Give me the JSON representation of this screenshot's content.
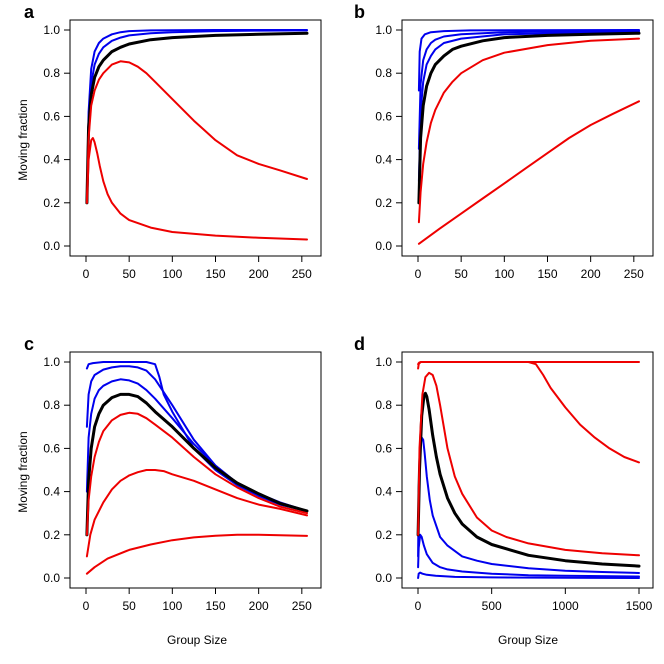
{
  "figure": {
    "shared_xlabel": "Group Size",
    "shared_ylabel": "Moving fraction"
  },
  "chart_data": [
    {
      "panel": "a",
      "type": "line",
      "xlabel": "",
      "ylabel": "Moving fraction",
      "xlim": [
        0,
        256
      ],
      "ylim": [
        0,
        1
      ],
      "xticks": [
        0,
        50,
        100,
        150,
        200,
        250
      ],
      "yticks": [
        0.0,
        0.2,
        0.4,
        0.6,
        0.8,
        1.0
      ],
      "xtick_labels": [
        "0",
        "50",
        "100",
        "150",
        "200",
        "250"
      ],
      "ytick_labels": [
        "0.0",
        "0.2",
        "0.4",
        "0.6",
        "0.8",
        "1.0"
      ],
      "grid": false,
      "series": [
        {
          "color": "#0000ee",
          "width": 2,
          "x": [
            1,
            3,
            6,
            10,
            15,
            20,
            30,
            40,
            50,
            75,
            100,
            150,
            200,
            256
          ],
          "y": [
            0.2,
            0.62,
            0.82,
            0.9,
            0.94,
            0.96,
            0.98,
            0.99,
            0.995,
            0.998,
            0.999,
            1.0,
            1.0,
            1.0
          ]
        },
        {
          "color": "#0000ee",
          "width": 2,
          "x": [
            1,
            3,
            6,
            10,
            15,
            20,
            30,
            40,
            50,
            75,
            100,
            150,
            200,
            256
          ],
          "y": [
            0.2,
            0.58,
            0.75,
            0.84,
            0.89,
            0.92,
            0.95,
            0.965,
            0.975,
            0.985,
            0.99,
            0.995,
            0.997,
            0.998
          ]
        },
        {
          "color": "#000000",
          "width": 3,
          "x": [
            1,
            3,
            6,
            10,
            15,
            20,
            30,
            40,
            50,
            75,
            100,
            150,
            200,
            256
          ],
          "y": [
            0.2,
            0.55,
            0.7,
            0.78,
            0.83,
            0.86,
            0.9,
            0.92,
            0.935,
            0.955,
            0.965,
            0.975,
            0.98,
            0.985
          ]
        },
        {
          "color": "#ee0000",
          "width": 2,
          "x": [
            1,
            3,
            6,
            10,
            15,
            20,
            30,
            40,
            50,
            60,
            70,
            80,
            100,
            125,
            150,
            175,
            200,
            225,
            256
          ],
          "y": [
            0.2,
            0.5,
            0.65,
            0.72,
            0.77,
            0.8,
            0.84,
            0.855,
            0.85,
            0.83,
            0.8,
            0.76,
            0.68,
            0.58,
            0.49,
            0.42,
            0.38,
            0.35,
            0.31
          ]
        },
        {
          "color": "#ee0000",
          "width": 2,
          "x": [
            1,
            3,
            6,
            8,
            10,
            13,
            16,
            20,
            25,
            30,
            40,
            50,
            75,
            100,
            150,
            200,
            256
          ],
          "y": [
            0.2,
            0.4,
            0.49,
            0.5,
            0.48,
            0.43,
            0.37,
            0.3,
            0.24,
            0.2,
            0.15,
            0.12,
            0.085,
            0.065,
            0.048,
            0.038,
            0.03
          ]
        }
      ]
    },
    {
      "panel": "b",
      "type": "line",
      "xlabel": "",
      "ylabel": "",
      "xlim": [
        0,
        256
      ],
      "ylim": [
        0,
        1
      ],
      "xticks": [
        0,
        50,
        100,
        150,
        200,
        250
      ],
      "yticks": [
        0.0,
        0.2,
        0.4,
        0.6,
        0.8,
        1.0
      ],
      "xtick_labels": [
        "0",
        "50",
        "100",
        "150",
        "200",
        "250"
      ],
      "ytick_labels": [
        "0.0",
        "0.2",
        "0.4",
        "0.6",
        "0.8",
        "1.0"
      ],
      "grid": false,
      "series": [
        {
          "color": "#0000ee",
          "width": 2,
          "x": [
            1,
            2,
            4,
            8,
            15,
            30,
            60,
            256
          ],
          "y": [
            0.72,
            0.9,
            0.96,
            0.98,
            0.99,
            0.995,
            0.998,
            1.0
          ]
        },
        {
          "color": "#0000ee",
          "width": 2,
          "x": [
            1,
            3,
            6,
            10,
            15,
            20,
            30,
            50,
            100,
            256
          ],
          "y": [
            0.45,
            0.75,
            0.86,
            0.91,
            0.94,
            0.955,
            0.97,
            0.98,
            0.99,
            0.997
          ]
        },
        {
          "color": "#0000ee",
          "width": 2,
          "x": [
            1,
            3,
            6,
            10,
            15,
            20,
            30,
            50,
            100,
            256
          ],
          "y": [
            0.3,
            0.62,
            0.76,
            0.84,
            0.88,
            0.91,
            0.94,
            0.96,
            0.98,
            0.993
          ]
        },
        {
          "color": "#000000",
          "width": 3,
          "x": [
            1,
            3,
            6,
            10,
            15,
            20,
            30,
            40,
            50,
            75,
            100,
            150,
            200,
            256
          ],
          "y": [
            0.2,
            0.5,
            0.65,
            0.74,
            0.8,
            0.84,
            0.88,
            0.91,
            0.925,
            0.95,
            0.965,
            0.975,
            0.98,
            0.985
          ]
        },
        {
          "color": "#ee0000",
          "width": 2,
          "x": [
            1,
            3,
            6,
            10,
            15,
            20,
            30,
            40,
            50,
            75,
            100,
            150,
            200,
            256
          ],
          "y": [
            0.11,
            0.25,
            0.38,
            0.48,
            0.57,
            0.63,
            0.71,
            0.76,
            0.8,
            0.86,
            0.895,
            0.93,
            0.95,
            0.96
          ]
        },
        {
          "color": "#ee0000",
          "width": 2,
          "x": [
            1,
            25,
            50,
            75,
            100,
            125,
            150,
            175,
            200,
            225,
            256
          ],
          "y": [
            0.01,
            0.08,
            0.15,
            0.22,
            0.29,
            0.36,
            0.43,
            0.5,
            0.56,
            0.61,
            0.67
          ]
        }
      ]
    },
    {
      "panel": "c",
      "type": "line",
      "xlabel": "Group Size",
      "ylabel": "Moving fraction",
      "xlim": [
        0,
        256
      ],
      "ylim": [
        0,
        1
      ],
      "xticks": [
        0,
        50,
        100,
        150,
        200,
        250
      ],
      "yticks": [
        0.0,
        0.2,
        0.4,
        0.6,
        0.8,
        1.0
      ],
      "xtick_labels": [
        "0",
        "50",
        "100",
        "150",
        "200",
        "250"
      ],
      "ytick_labels": [
        "0.0",
        "0.2",
        "0.4",
        "0.6",
        "0.8",
        "1.0"
      ],
      "grid": false,
      "series": [
        {
          "color": "#0000ee",
          "width": 2,
          "x": [
            1,
            3,
            8,
            20,
            50,
            70,
            80,
            85,
            90,
            100,
            125,
            150,
            175,
            200,
            225,
            256
          ],
          "y": [
            0.97,
            0.99,
            0.995,
            1.0,
            1.0,
            1.0,
            0.99,
            0.93,
            0.85,
            0.77,
            0.6,
            0.5,
            0.43,
            0.38,
            0.34,
            0.31
          ]
        },
        {
          "color": "#0000ee",
          "width": 2,
          "x": [
            1,
            3,
            6,
            10,
            20,
            30,
            40,
            50,
            60,
            70,
            80,
            90,
            100,
            125,
            150,
            175,
            200,
            225,
            256
          ],
          "y": [
            0.7,
            0.85,
            0.91,
            0.94,
            0.965,
            0.975,
            0.98,
            0.98,
            0.975,
            0.96,
            0.92,
            0.86,
            0.8,
            0.64,
            0.52,
            0.44,
            0.38,
            0.345,
            0.31
          ]
        },
        {
          "color": "#0000ee",
          "width": 2,
          "x": [
            1,
            3,
            6,
            10,
            15,
            20,
            30,
            40,
            50,
            60,
            70,
            80,
            100,
            125,
            150,
            175,
            200,
            225,
            256
          ],
          "y": [
            0.4,
            0.65,
            0.76,
            0.83,
            0.87,
            0.89,
            0.91,
            0.92,
            0.915,
            0.9,
            0.87,
            0.83,
            0.74,
            0.62,
            0.52,
            0.44,
            0.39,
            0.35,
            0.31
          ]
        },
        {
          "color": "#000000",
          "width": 3,
          "x": [
            1,
            3,
            6,
            10,
            15,
            20,
            30,
            40,
            50,
            60,
            70,
            80,
            100,
            125,
            150,
            175,
            200,
            225,
            256
          ],
          "y": [
            0.2,
            0.45,
            0.6,
            0.7,
            0.76,
            0.8,
            0.835,
            0.85,
            0.85,
            0.84,
            0.81,
            0.77,
            0.7,
            0.6,
            0.51,
            0.44,
            0.39,
            0.345,
            0.31
          ]
        },
        {
          "color": "#ee0000",
          "width": 2,
          "x": [
            1,
            3,
            6,
            10,
            15,
            20,
            30,
            40,
            50,
            60,
            70,
            80,
            100,
            125,
            150,
            175,
            200,
            225,
            256
          ],
          "y": [
            0.2,
            0.36,
            0.47,
            0.56,
            0.63,
            0.68,
            0.73,
            0.755,
            0.765,
            0.76,
            0.74,
            0.71,
            0.65,
            0.56,
            0.48,
            0.42,
            0.37,
            0.33,
            0.3
          ]
        },
        {
          "color": "#ee0000",
          "width": 2,
          "x": [
            1,
            5,
            10,
            20,
            30,
            40,
            50,
            60,
            70,
            80,
            90,
            100,
            125,
            150,
            175,
            200,
            225,
            256
          ],
          "y": [
            0.1,
            0.2,
            0.27,
            0.35,
            0.41,
            0.45,
            0.475,
            0.49,
            0.5,
            0.5,
            0.495,
            0.48,
            0.45,
            0.41,
            0.37,
            0.34,
            0.32,
            0.29
          ]
        },
        {
          "color": "#ee0000",
          "width": 2,
          "x": [
            1,
            10,
            25,
            50,
            75,
            100,
            125,
            150,
            175,
            200,
            225,
            256
          ],
          "y": [
            0.02,
            0.05,
            0.09,
            0.13,
            0.155,
            0.175,
            0.188,
            0.196,
            0.2,
            0.2,
            0.198,
            0.195
          ]
        }
      ]
    },
    {
      "panel": "d",
      "type": "line",
      "xlabel": "Group Size",
      "ylabel": "",
      "xlim": [
        0,
        1500
      ],
      "ylim": [
        0,
        1
      ],
      "xticks": [
        0,
        500,
        1000,
        1500
      ],
      "yticks": [
        0.0,
        0.2,
        0.4,
        0.6,
        0.8,
        1.0
      ],
      "xtick_labels": [
        "0",
        "500",
        "1000",
        "1500"
      ],
      "ytick_labels": [
        "0.0",
        "0.2",
        "0.4",
        "0.6",
        "0.8",
        "1.0"
      ],
      "grid": false,
      "series": [
        {
          "color": "#0000ee",
          "width": 2,
          "x": [
            1,
            5,
            15,
            30,
            60,
            120,
            250,
            500,
            1000,
            1500
          ],
          "y": [
            0.0,
            0.02,
            0.025,
            0.02,
            0.015,
            0.01,
            0.005,
            0.003,
            0.001,
            0.0
          ]
        },
        {
          "color": "#0000ee",
          "width": 2,
          "x": [
            1,
            5,
            15,
            25,
            40,
            60,
            100,
            150,
            200,
            300,
            500,
            750,
            1000,
            1500
          ],
          "y": [
            0.05,
            0.14,
            0.2,
            0.19,
            0.15,
            0.11,
            0.07,
            0.05,
            0.04,
            0.03,
            0.02,
            0.013,
            0.01,
            0.007
          ]
        },
        {
          "color": "#0000ee",
          "width": 2,
          "x": [
            1,
            5,
            15,
            25,
            35,
            45,
            60,
            80,
            100,
            150,
            200,
            300,
            400,
            500,
            750,
            1000,
            1250,
            1500
          ],
          "y": [
            0.1,
            0.4,
            0.6,
            0.65,
            0.64,
            0.58,
            0.47,
            0.36,
            0.29,
            0.19,
            0.15,
            0.1,
            0.08,
            0.065,
            0.045,
            0.034,
            0.028,
            0.023
          ]
        },
        {
          "color": "#000000",
          "width": 3,
          "x": [
            1,
            10,
            25,
            40,
            50,
            60,
            75,
            100,
            125,
            150,
            200,
            250,
            300,
            400,
            500,
            750,
            1000,
            1250,
            1500
          ],
          "y": [
            0.2,
            0.5,
            0.75,
            0.84,
            0.855,
            0.84,
            0.78,
            0.66,
            0.56,
            0.48,
            0.37,
            0.3,
            0.25,
            0.19,
            0.155,
            0.105,
            0.08,
            0.065,
            0.055
          ]
        },
        {
          "color": "#ee0000",
          "width": 2,
          "x": [
            1,
            10,
            30,
            50,
            75,
            100,
            125,
            150,
            175,
            200,
            250,
            300,
            400,
            500,
            600,
            750,
            1000,
            1250,
            1500
          ],
          "y": [
            0.2,
            0.6,
            0.85,
            0.93,
            0.95,
            0.94,
            0.89,
            0.8,
            0.7,
            0.6,
            0.47,
            0.39,
            0.28,
            0.22,
            0.19,
            0.16,
            0.13,
            0.115,
            0.105
          ]
        },
        {
          "color": "#ee0000",
          "width": 2,
          "x": [
            1,
            5,
            10,
            20,
            50,
            100,
            300,
            600,
            750,
            800,
            850,
            900,
            1000,
            1100,
            1200,
            1300,
            1400,
            1500
          ],
          "y": [
            0.97,
            0.99,
            0.995,
            1.0,
            1.0,
            1.0,
            1.0,
            1.0,
            1.0,
            0.99,
            0.94,
            0.88,
            0.79,
            0.71,
            0.65,
            0.6,
            0.56,
            0.535
          ]
        },
        {
          "color": "#ee0000",
          "width": 2,
          "x": [
            1,
            5,
            10,
            20,
            50,
            100,
            500,
            1000,
            1500
          ],
          "y": [
            0.99,
            0.995,
            0.998,
            1.0,
            1.0,
            1.0,
            1.0,
            1.0,
            1.0
          ]
        }
      ]
    }
  ]
}
